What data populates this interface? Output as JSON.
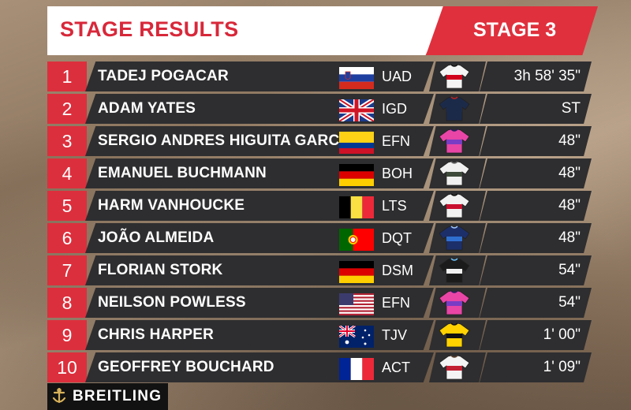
{
  "header": {
    "title": "STAGE RESULTS",
    "stage": "STAGE 3"
  },
  "sponsor": {
    "name": "BREITLING",
    "logo": "breitling-anchor-icon"
  },
  "rows": [
    {
      "pos": "1",
      "name": "TADEJ POGACAR",
      "team": "UAD",
      "time": "3h 58' 35\"",
      "flag": "slovenia",
      "jersey": "uae-jersey"
    },
    {
      "pos": "2",
      "name": "ADAM YATES",
      "team": "IGD",
      "time": "ST",
      "flag": "uk",
      "jersey": "ineos-jersey"
    },
    {
      "pos": "3",
      "name": "SERGIO ANDRES HIGUITA GARCIA",
      "team": "EFN",
      "time": "48\"",
      "flag": "colombia",
      "jersey": "ef-jersey"
    },
    {
      "pos": "4",
      "name": "EMANUEL BUCHMANN",
      "team": "BOH",
      "time": "48\"",
      "flag": "germany",
      "jersey": "bora-jersey"
    },
    {
      "pos": "5",
      "name": "HARM VANHOUCKE",
      "team": "LTS",
      "time": "48\"",
      "flag": "belgium",
      "jersey": "lotto-jersey"
    },
    {
      "pos": "6",
      "name": "JOÃO ALMEIDA",
      "team": "DQT",
      "time": "48\"",
      "flag": "portugal",
      "jersey": "deceuninck-jersey"
    },
    {
      "pos": "7",
      "name": "FLORIAN STORK",
      "team": "DSM",
      "time": "54\"",
      "flag": "germany",
      "jersey": "dsm-jersey"
    },
    {
      "pos": "8",
      "name": "NEILSON POWLESS",
      "team": "EFN",
      "time": "54\"",
      "flag": "usa",
      "jersey": "ef-jersey"
    },
    {
      "pos": "9",
      "name": "CHRIS HARPER",
      "team": "TJV",
      "time": "1' 00\"",
      "flag": "australia",
      "jersey": "jumbo-jersey"
    },
    {
      "pos": "10",
      "name": "GEOFFREY BOUCHARD",
      "team": "ACT",
      "time": "1' 09\"",
      "flag": "france",
      "jersey": "ag2r-jersey"
    }
  ]
}
